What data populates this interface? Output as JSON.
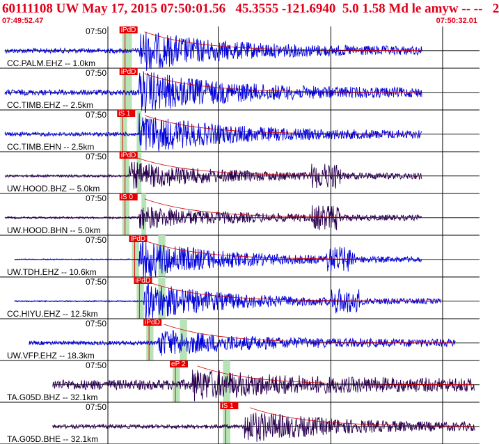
{
  "header": {
    "title": "60111108 UW May 17, 2015 07:50:01.56   45.3555 -121.6940  5.0 1.58 Md le amyw -- --   2",
    "start_time": "07:49:52.47",
    "end_time": "07:50:32.01"
  },
  "colors": {
    "header_text": "#e0001a",
    "trace_blue": "#0000dd",
    "trace_dark": "#2a0050",
    "pick_box": "#e60000",
    "pick_band": "#b7e3b7",
    "fit_curve": "#cc0000"
  },
  "traces": [
    {
      "label": "CC.PALM.EHZ -- 1.0km",
      "tick": "07:50",
      "pick": "iPdD",
      "color": "blue",
      "start": 0.01,
      "onset": 0.29,
      "end": 0.88,
      "amp": 0.9,
      "noise": 0.12,
      "second": null
    },
    {
      "label": "CC.TIMB.EHZ -- 2.5km",
      "tick": "07:50",
      "pick": "iPdD",
      "color": "blue",
      "start": 0.01,
      "onset": 0.29,
      "end": 0.88,
      "amp": 0.95,
      "noise": 0.14,
      "second": null
    },
    {
      "label": "CC.TIMB.EHN -- 2.5km",
      "tick": "07:50",
      "pick": "iS 1",
      "color": "blue",
      "start": 0.01,
      "onset": 0.29,
      "end": 0.88,
      "amp": 0.9,
      "noise": 0.1,
      "second": null
    },
    {
      "label": "UW.HOOD.BHZ -- 5.0km",
      "tick": "07:50",
      "pick": "iPdD",
      "color": "dark",
      "start": 0.01,
      "onset": 0.27,
      "end": 0.88,
      "amp": 0.6,
      "noise": 0.06,
      "second": 0.68
    },
    {
      "label": "UW.HOOD.BHN -- 5.0km",
      "tick": "07:50",
      "pick": "iS 0",
      "color": "dark",
      "start": 0.01,
      "onset": 0.29,
      "end": 0.88,
      "amp": 0.5,
      "noise": 0.05,
      "second": 0.68
    },
    {
      "label": "UW.TDH.EHZ -- 10.6km",
      "tick": "07:50",
      "pick": "iPdD",
      "color": "blue",
      "start": 0.03,
      "onset": 0.29,
      "end": 0.88,
      "amp": 0.95,
      "noise": 0.03,
      "second": 0.71
    },
    {
      "label": "CC.HIYU.EHZ -- 12.5km",
      "tick": "07:50",
      "pick": "iPdD",
      "color": "blue",
      "start": 0.03,
      "onset": 0.3,
      "end": 0.92,
      "amp": 0.9,
      "noise": 0.03,
      "second": 0.72
    },
    {
      "label": "UW.VFP.EHZ -- 18.3km",
      "tick": "07:50",
      "pick": "iPdD",
      "color": "blue",
      "start": 0.06,
      "onset": 0.33,
      "end": 0.95,
      "amp": 0.55,
      "noise": 0.1,
      "second": null
    },
    {
      "label": "TA.G05D.BHZ -- 32.1km",
      "tick": "07:50",
      "pick": "eP 2",
      "color": "dark",
      "start": 0.11,
      "onset": 0.4,
      "end": 0.99,
      "amp": 0.55,
      "noise": 0.25,
      "second": null
    },
    {
      "label": "TA.G05D.BHE -- 32.1km",
      "tick": "07:50",
      "pick": "iS 1",
      "color": "dark",
      "start": 0.11,
      "onset": 0.51,
      "end": 0.99,
      "amp": 0.7,
      "noise": 0.1,
      "second": null
    }
  ]
}
